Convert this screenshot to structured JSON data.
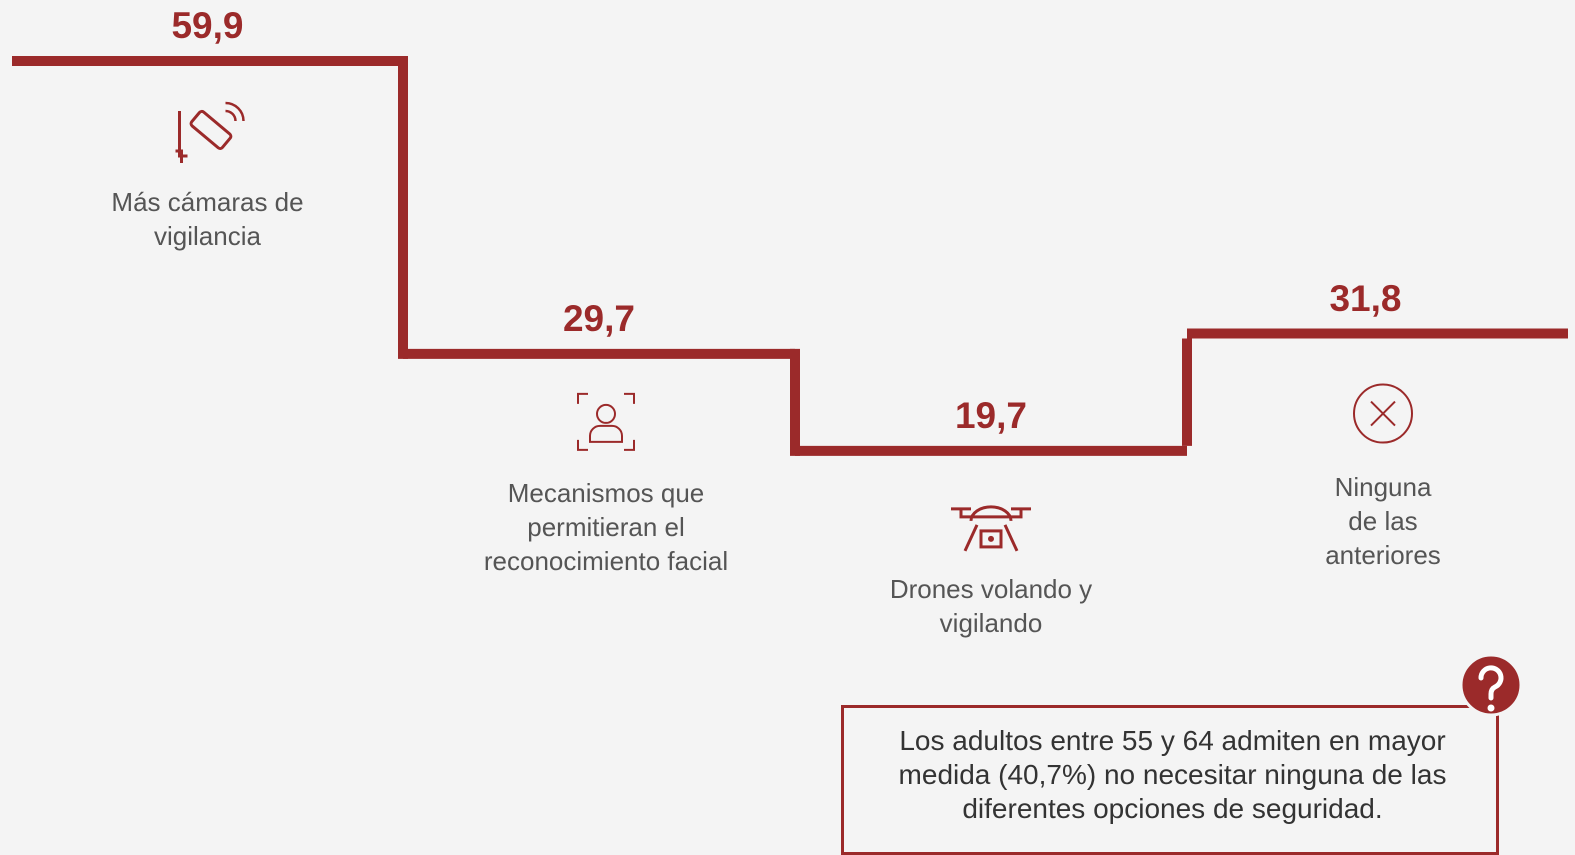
{
  "chart_data": {
    "type": "step",
    "categories": [
      "Más cámaras de vigilancia",
      "Mecanismos que permitieran el reconocimiento facial",
      "Drones volando y vigilando",
      "Ninguna de las anteriores"
    ],
    "values": [
      59.9,
      29.7,
      19.7,
      31.8
    ],
    "value_labels": [
      "59,9",
      "29,7",
      "19,7",
      "31,8"
    ],
    "color": "#9b2a2a",
    "note": "Los adultos entre 55 y 64 admiten en mayor medida (40,7%) no necesitar ninguna de las diferentes opciones de seguridad."
  }
}
